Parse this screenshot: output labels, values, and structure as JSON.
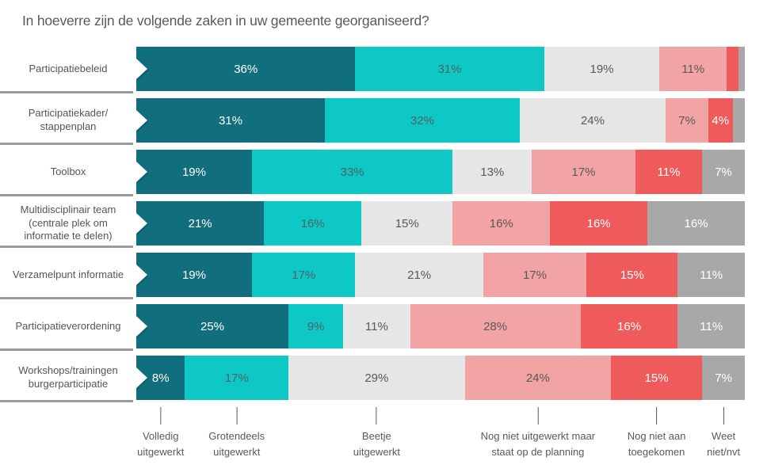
{
  "chart_data": {
    "type": "bar",
    "orientation": "horizontal",
    "stacked": true,
    "unit": "%",
    "xlim": [
      0,
      100
    ],
    "grid": false,
    "legend_position": "bottom",
    "label_min_value": 4,
    "title": "In hoeverre zijn de volgende zaken in uw gemeente georganiseerd?",
    "categories": [
      "Participatiebeleid",
      "Participatiekader/\nstappenplan",
      "Toolbox",
      "Multidisciplinair team\n(centrale plek om\ninformatie te delen)",
      "Verzamelpunt informatie",
      "Participatieverordening",
      "Workshops/trainingen\nburgerparticipatie"
    ],
    "series": [
      {
        "name": "Volledig uitgewerkt",
        "color": "#106E7D",
        "label_color": "#FFFFFF",
        "values": [
          36,
          31,
          19,
          21,
          19,
          25,
          8
        ]
      },
      {
        "name": "Grotendeels uitgewerkt",
        "color": "#0DC8C4",
        "label_color": "#4E6366",
        "values": [
          31,
          32,
          33,
          16,
          17,
          9,
          17
        ]
      },
      {
        "name": "Beetje uitgewerkt",
        "color": "#E6E6E6",
        "label_color": "#595959",
        "values": [
          19,
          24,
          13,
          15,
          21,
          11,
          29
        ]
      },
      {
        "name": "Nog niet uitgewerkt maar staat op de planning",
        "color": "#F2A3A3",
        "label_color": "#595959",
        "values": [
          11,
          7,
          17,
          16,
          17,
          28,
          24
        ]
      },
      {
        "name": "Nog niet aan toegekomen",
        "color": "#EF5A5A",
        "label_color": "#FFFFFF",
        "values": [
          2,
          4,
          11,
          16,
          15,
          16,
          15
        ]
      },
      {
        "name": "Weet niet/nvt",
        "color": "#A8A8A8",
        "label_color": "#FFFFFF",
        "values": [
          1,
          2,
          7,
          16,
          11,
          11,
          7
        ]
      }
    ],
    "legend": {
      "items": [
        {
          "label": "Volledig\nuitgewerkt",
          "x_percent": 4
        },
        {
          "label": "Grotendeels\nuitgewerkt",
          "x_percent": 16.5
        },
        {
          "label": "Beetje\nuitgewerkt",
          "x_percent": 39.5
        },
        {
          "label": "Nog niet uitgewerkt maar\nstaat op de planning",
          "x_percent": 66
        },
        {
          "label": "Nog niet aan\ntoegekomen",
          "x_percent": 85.5
        },
        {
          "label": "Weet\nniet/nvt",
          "x_percent": 96.5
        }
      ]
    }
  }
}
